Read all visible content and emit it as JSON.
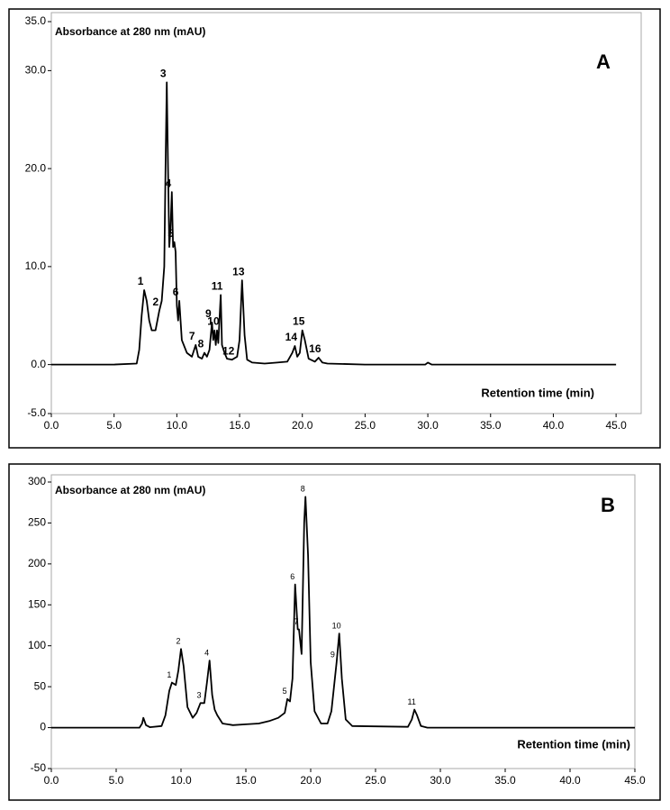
{
  "chart_data": [
    {
      "type": "line",
      "panel_label": "A",
      "y_label": "Absorbance at 280 nm (mAU)",
      "x_label": "Retention time (min)",
      "xlim": [
        0,
        47
      ],
      "ylim": [
        -5,
        35
      ],
      "xticks": [
        {
          "value": 0,
          "label": "0.0"
        },
        {
          "value": 5,
          "label": "5.0"
        },
        {
          "value": 10,
          "label": "10.0"
        },
        {
          "value": 15,
          "label": "15.0"
        },
        {
          "value": 20,
          "label": "20.0"
        },
        {
          "value": 25,
          "label": "25.0"
        },
        {
          "value": 30,
          "label": "30.0"
        },
        {
          "value": 35,
          "label": "35.0"
        },
        {
          "value": 40,
          "label": "40.0"
        },
        {
          "value": 45,
          "label": "45.0"
        }
      ],
      "yticks": [
        {
          "value": -5,
          "label": "-5.0"
        },
        {
          "value": 0,
          "label": "0.0"
        },
        {
          "value": 10,
          "label": "10.0"
        },
        {
          "value": 20,
          "label": "20.0"
        },
        {
          "value": 30,
          "label": "30.0"
        },
        {
          "value": 35,
          "label": "35.0"
        }
      ],
      "x": [
        0,
        5,
        6.8,
        7.0,
        7.2,
        7.4,
        7.6,
        7.8,
        8.0,
        8.3,
        8.6,
        8.8,
        9.0,
        9.1,
        9.2,
        9.3,
        9.4,
        9.5,
        9.6,
        9.7,
        9.8,
        9.9,
        10.0,
        10.1,
        10.2,
        10.4,
        10.8,
        11.2,
        11.5,
        11.7,
        12.0,
        12.2,
        12.4,
        12.6,
        12.8,
        12.9,
        13.0,
        13.1,
        13.2,
        13.3,
        13.5,
        13.6,
        13.8,
        14.0,
        14.4,
        14.8,
        15.0,
        15.2,
        15.4,
        15.6,
        16,
        17,
        18,
        18.8,
        19.2,
        19.4,
        19.6,
        19.8,
        20.0,
        20.2,
        20.5,
        21,
        21.3,
        21.6,
        22,
        25,
        29.8,
        30,
        30.3,
        35,
        45
      ],
      "series": [
        {
          "color": "#000000",
          "values": [
            0,
            0,
            0.1,
            1.5,
            5,
            7.6,
            6.5,
            4.5,
            3.5,
            3.5,
            5.5,
            6.5,
            10,
            20,
            28.8,
            20,
            12,
            14,
            17.6,
            12,
            12.5,
            11.5,
            6,
            4.5,
            6.5,
            2.5,
            1.2,
            0.8,
            2,
            0.8,
            0.6,
            1.2,
            0.8,
            1.5,
            4.3,
            2.5,
            3.5,
            2,
            3.5,
            2.2,
            7.1,
            2,
            1.2,
            0.6,
            0.5,
            0.8,
            2.5,
            8.6,
            3,
            0.5,
            0.2,
            0.1,
            0.2,
            0.3,
            1.2,
            1.9,
            0.8,
            1.2,
            3.5,
            2.5,
            0.6,
            0.3,
            0.7,
            0.2,
            0.1,
            0,
            0,
            0.2,
            0,
            0,
            0
          ]
        }
      ],
      "peaks": [
        {
          "label": "1",
          "x": 7.4,
          "y": 7.6
        },
        {
          "label": "2",
          "x": 8.6,
          "y": 5.5
        },
        {
          "label": "3",
          "x": 9.2,
          "y": 28.8
        },
        {
          "label": "4",
          "x": 9.6,
          "y": 17.6
        },
        {
          "label": "5",
          "x": 9.8,
          "y": 12.5
        },
        {
          "label": "6",
          "x": 10.2,
          "y": 6.5
        },
        {
          "label": "7",
          "x": 11.5,
          "y": 2
        },
        {
          "label": "8",
          "x": 12.2,
          "y": 1.2
        },
        {
          "label": "9",
          "x": 12.8,
          "y": 4.3
        },
        {
          "label": "10",
          "x": 13.2,
          "y": 3.5
        },
        {
          "label": "11",
          "x": 13.5,
          "y": 7.1
        },
        {
          "label": "12",
          "x": 14.4,
          "y": 0.5
        },
        {
          "label": "13",
          "x": 15.2,
          "y": 8.6
        },
        {
          "label": "14",
          "x": 19.4,
          "y": 1.9
        },
        {
          "label": "15",
          "x": 20.0,
          "y": 3.5
        },
        {
          "label": "16",
          "x": 21.3,
          "y": 0.7
        }
      ]
    },
    {
      "type": "line",
      "panel_label": "B",
      "y_label": "Absorbance at 280 nm (mAU)",
      "x_label": "Retention time (min)",
      "xlim": [
        0,
        45
      ],
      "ylim": [
        -50,
        300
      ],
      "xticks": [
        {
          "value": 0,
          "label": "0.0"
        },
        {
          "value": 5,
          "label": "5.0"
        },
        {
          "value": 10,
          "label": "10.0"
        },
        {
          "value": 15,
          "label": "15.0"
        },
        {
          "value": 20,
          "label": "20.0"
        },
        {
          "value": 25,
          "label": "25.0"
        },
        {
          "value": 30,
          "label": "30.0"
        },
        {
          "value": 35,
          "label": "35.0"
        },
        {
          "value": 40,
          "label": "40.0"
        },
        {
          "value": 45,
          "label": "45.0"
        }
      ],
      "yticks": [
        -50,
        0,
        50,
        100,
        150,
        200,
        250,
        300
      ],
      "x": [
        0,
        6.8,
        7.0,
        7.1,
        7.3,
        7.6,
        8.5,
        8.8,
        9.1,
        9.3,
        9.6,
        9.8,
        10.0,
        10.2,
        10.5,
        10.9,
        11.2,
        11.5,
        11.8,
        12.0,
        12.2,
        12.4,
        12.6,
        12.8,
        13.2,
        14,
        15,
        16,
        16.8,
        17.5,
        18.0,
        18.2,
        18.4,
        18.6,
        18.8,
        19.0,
        19.1,
        19.3,
        19.5,
        19.6,
        19.8,
        20.0,
        20.3,
        20.8,
        21.3,
        21.6,
        21.8,
        22.0,
        22.2,
        22.4,
        22.7,
        23.2,
        27.5,
        27.8,
        28.0,
        28.2,
        28.5,
        29,
        45
      ],
      "series": [
        {
          "color": "#000000",
          "values": [
            0,
            0,
            5,
            12,
            3,
            0.5,
            2,
            15,
            45,
            55,
            52,
            70,
            96,
            75,
            25,
            12,
            18,
            30,
            30,
            55,
            82,
            40,
            22,
            15,
            5,
            3,
            4,
            5,
            8,
            12,
            18,
            35,
            32,
            60,
            175,
            120,
            120,
            90,
            250,
            282,
            210,
            80,
            20,
            5,
            5,
            20,
            50,
            80,
            115,
            60,
            10,
            2,
            1,
            10,
            22,
            15,
            2,
            0,
            0
          ]
        }
      ],
      "peaks": [
        {
          "label": "1",
          "x": 9.3,
          "y": 55
        },
        {
          "label": "2",
          "x": 10.0,
          "y": 96
        },
        {
          "label": "3",
          "x": 11.6,
          "y": 30
        },
        {
          "label": "4",
          "x": 12.2,
          "y": 82
        },
        {
          "label": "5",
          "x": 18.2,
          "y": 35
        },
        {
          "label": "6",
          "x": 18.8,
          "y": 175
        },
        {
          "label": "7",
          "x": 19.1,
          "y": 120
        },
        {
          "label": "8",
          "x": 19.6,
          "y": 282
        },
        {
          "label": "9",
          "x": 21.9,
          "y": 80
        },
        {
          "label": "10",
          "x": 22.2,
          "y": 115
        },
        {
          "label": "11",
          "x": 28.0,
          "y": 22
        }
      ]
    }
  ]
}
